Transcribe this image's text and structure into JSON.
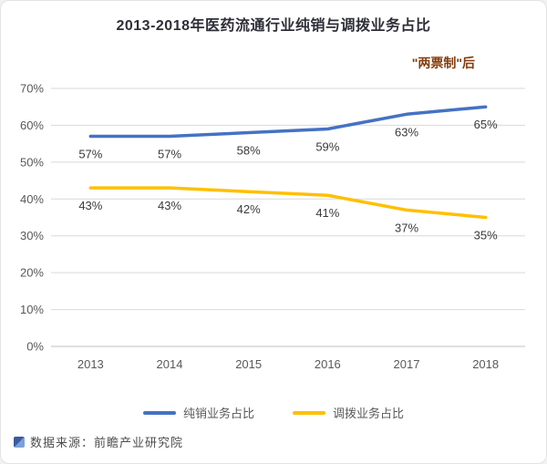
{
  "chart_data": {
    "type": "line",
    "title": "2013-2018年医药流通行业纯销与调拨业务占比",
    "annotation": "\"两票制\"后",
    "categories": [
      "2013",
      "2014",
      "2015",
      "2016",
      "2017",
      "2018"
    ],
    "series": [
      {
        "name": "纯销业务占比",
        "color": "#4472C4",
        "values": [
          57,
          57,
          58,
          59,
          63,
          65
        ]
      },
      {
        "name": "调拨业务占比",
        "color": "#FFC000",
        "values": [
          43,
          43,
          42,
          41,
          37,
          35
        ]
      }
    ],
    "ylim": [
      0,
      70
    ],
    "ytick_step": 10,
    "ytick_suffix": "%",
    "grid": true,
    "legend_position": "bottom",
    "data_label_position": "below"
  },
  "source": {
    "label": "数据来源：前瞻产业研究院"
  },
  "colors": {
    "title": "#2e2e38",
    "annotation": "#843C0C",
    "gridline": "#d9d9d9",
    "axis": "#bfbfbf",
    "tick_label": "#595959",
    "data_label": "#3a3a3a"
  }
}
